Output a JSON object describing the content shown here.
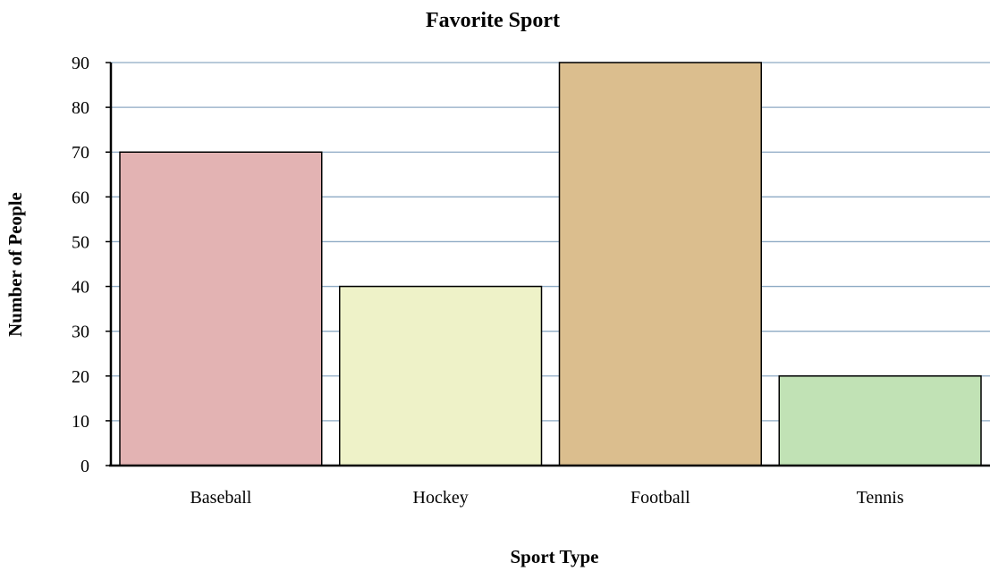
{
  "chart_data": {
    "type": "bar",
    "title": "Favorite Sport",
    "xlabel": "Sport Type",
    "ylabel": "Number of People",
    "categories": [
      "Baseball",
      "Hockey",
      "Football",
      "Tennis"
    ],
    "values": [
      70,
      40,
      90,
      20
    ],
    "colors": [
      "#e3b3b3",
      "#eef2c8",
      "#dbbe8e",
      "#c1e2b5"
    ],
    "ylim": [
      0,
      90
    ],
    "yticks": [
      "0",
      "10",
      "20",
      "30",
      "40",
      "50",
      "60",
      "70",
      "80",
      "90"
    ],
    "grid": true,
    "grid_color": "#8eaac4",
    "legend": false
  }
}
